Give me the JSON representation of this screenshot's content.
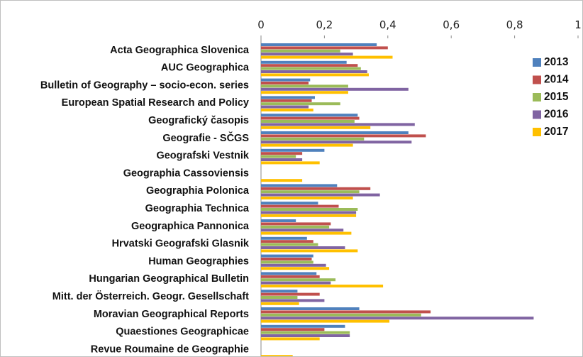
{
  "chart_data": {
    "type": "bar",
    "orientation": "horizontal",
    "title": "",
    "xlabel": "",
    "ylabel": "",
    "xlim": [
      0,
      1
    ],
    "x_ticks": [
      0,
      0.2,
      0.4,
      0.6,
      0.8,
      1
    ],
    "x_tick_labels": [
      "0",
      "0,2",
      "0,4",
      "0,6",
      "0,8",
      "1"
    ],
    "x_axis_position": "top",
    "grid": false,
    "legend_position": "right",
    "categories": [
      "Acta Geographica Slovenica",
      "AUC Geographica",
      "Bulletin of Geography – socio-econ. series",
      "European Spatial Research and Policy",
      "Geografický časopis",
      "Geografie - SČGS",
      "Geografski Vestnik",
      "Geographia Cassoviensis",
      "Geographia Polonica",
      "Geographia Technica",
      "Geographica Pannonica",
      "Hrvatski Geografski Glasnik",
      "Human Geographies",
      "Hungarian Geographical Bulletin",
      "Mitt. der Österreich. Geogr. Gesellschaft",
      "Moravian Geographical Reports",
      "Quaestiones Geographicae",
      "Revue Roumaine de Geographie"
    ],
    "series": [
      {
        "name": "2013",
        "color": "#4f81bd",
        "values": [
          0.365,
          0.27,
          0.155,
          0.17,
          0.305,
          0.465,
          0.2,
          null,
          0.24,
          0.18,
          0.11,
          0.145,
          0.165,
          0.175,
          0.115,
          0.31,
          0.265,
          null
        ]
      },
      {
        "name": "2014",
        "color": "#c0504d",
        "values": [
          0.4,
          0.305,
          0.15,
          0.16,
          0.31,
          0.52,
          0.13,
          null,
          0.345,
          0.245,
          0.22,
          0.165,
          0.16,
          0.185,
          0.185,
          0.535,
          0.2,
          null
        ]
      },
      {
        "name": "2015",
        "color": "#9bbb59",
        "values": [
          0.25,
          0.315,
          0.275,
          0.25,
          0.295,
          0.325,
          0.11,
          null,
          0.31,
          0.305,
          0.215,
          0.18,
          0.165,
          0.235,
          0.115,
          0.505,
          0.28,
          null
        ]
      },
      {
        "name": "2016",
        "color": "#8064a2",
        "values": [
          0.29,
          0.335,
          0.465,
          0.15,
          0.485,
          0.475,
          0.13,
          null,
          0.375,
          0.3,
          0.26,
          0.265,
          0.205,
          0.22,
          0.2,
          0.86,
          0.28,
          null
        ]
      },
      {
        "name": "2017",
        "color": "#ffc000",
        "values": [
          0.415,
          0.34,
          0.275,
          0.165,
          0.345,
          0.29,
          0.185,
          0.13,
          0.29,
          0.3,
          0.285,
          0.305,
          0.215,
          0.385,
          0.12,
          0.405,
          0.185,
          0.1
        ]
      }
    ]
  }
}
